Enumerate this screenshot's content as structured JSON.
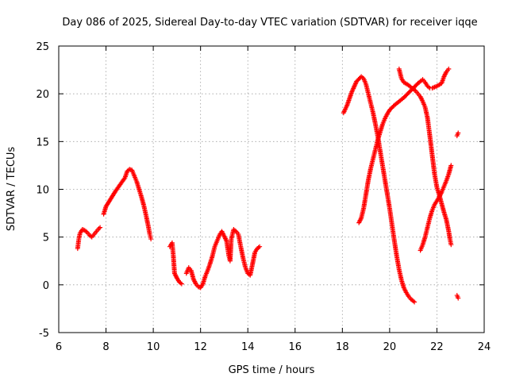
{
  "chart_data": {
    "type": "scatter",
    "title": "Day 086 of 2025, Sidereal Day-to-day VTEC variation (SDTVAR) for receiver iqqe",
    "xlabel": "GPS time / hours",
    "ylabel": "SDTVAR / TECUs",
    "xlim": [
      6,
      24
    ],
    "ylim": [
      -5,
      25
    ],
    "x_ticks": [
      6,
      8,
      10,
      12,
      14,
      16,
      18,
      20,
      22,
      24
    ],
    "y_ticks": [
      -5,
      0,
      5,
      10,
      15,
      20,
      25
    ],
    "x_tick_labels": [
      "6",
      "8",
      "10",
      "12",
      "14",
      "16",
      "18",
      "20",
      "22",
      "24"
    ],
    "y_tick_labels": [
      "-5",
      "0",
      "5",
      "10",
      "15",
      "20",
      "25"
    ],
    "grid": true,
    "marker": "+",
    "color": "#ff0000",
    "series": [
      {
        "name": "arc-1",
        "x": [
          6.8,
          6.85,
          6.9,
          7.0,
          7.1,
          7.2,
          7.3,
          7.4,
          7.5,
          7.6,
          7.7,
          7.75
        ],
        "y": [
          3.8,
          4.8,
          5.4,
          5.8,
          5.7,
          5.5,
          5.2,
          5.0,
          5.3,
          5.6,
          5.9,
          6.0
        ]
      },
      {
        "name": "arc-2",
        "x": [
          7.9,
          8.0,
          8.2,
          8.4,
          8.6,
          8.8,
          8.9,
          9.0,
          9.1,
          9.2,
          9.3,
          9.4,
          9.5,
          9.6,
          9.7,
          9.8,
          9.85,
          9.9
        ],
        "y": [
          7.4,
          8.2,
          9.0,
          9.8,
          10.5,
          11.2,
          11.9,
          12.1,
          12.0,
          11.4,
          10.8,
          10.0,
          9.2,
          8.3,
          7.2,
          6.0,
          5.3,
          4.8
        ]
      },
      {
        "name": "arc-3",
        "x": [
          10.7,
          10.8,
          10.85,
          10.9,
          11.0,
          11.1,
          11.2
        ],
        "y": [
          4.0,
          4.4,
          3.0,
          1.2,
          0.7,
          0.3,
          0.1
        ]
      },
      {
        "name": "arc-4",
        "x": [
          11.4,
          11.5,
          11.6,
          11.7,
          11.8,
          11.9,
          12.0,
          12.1,
          12.2,
          12.3,
          12.4,
          12.5,
          12.6,
          12.7,
          12.8,
          12.9,
          13.0,
          13.1,
          13.2,
          13.25,
          13.3,
          13.4,
          13.5,
          13.6,
          13.7,
          13.8,
          13.9,
          14.0,
          14.1,
          14.2,
          14.3,
          14.4,
          14.5
        ],
        "y": [
          1.2,
          1.8,
          1.5,
          0.6,
          0.1,
          -0.2,
          -0.3,
          0.1,
          0.9,
          1.5,
          2.2,
          3.0,
          4.0,
          4.6,
          5.2,
          5.6,
          5.1,
          4.6,
          3.0,
          2.5,
          4.8,
          5.8,
          5.6,
          5.3,
          4.0,
          2.8,
          1.8,
          1.2,
          1.0,
          2.2,
          3.4,
          3.8,
          4.0
        ]
      },
      {
        "name": "arc-5",
        "x": [
          18.05,
          18.2,
          18.4,
          18.6,
          18.8,
          18.9,
          19.0,
          19.1,
          19.2,
          19.3,
          19.4,
          19.5,
          19.6,
          19.7,
          19.8,
          19.9,
          20.0,
          20.1,
          20.2,
          20.3,
          20.4,
          20.5,
          20.6,
          20.7,
          20.8,
          20.9,
          21.0,
          21.05
        ],
        "y": [
          18.0,
          18.8,
          20.2,
          21.3,
          21.8,
          21.6,
          21.0,
          20.0,
          19.0,
          18.0,
          16.8,
          15.5,
          14.0,
          12.5,
          11.0,
          9.5,
          8.0,
          6.3,
          4.6,
          3.0,
          1.6,
          0.5,
          -0.3,
          -0.8,
          -1.2,
          -1.5,
          -1.7,
          -1.8
        ]
      },
      {
        "name": "arc-6",
        "x": [
          18.7,
          18.8,
          18.9,
          19.0,
          19.1,
          19.2,
          19.3,
          19.4,
          19.5,
          19.6,
          19.7,
          19.8,
          19.9,
          20.0,
          20.2,
          20.4,
          20.6,
          20.8,
          21.0,
          21.2,
          21.4,
          21.5,
          21.6,
          21.7,
          21.8,
          21.9,
          22.0,
          22.2,
          22.3,
          22.4,
          22.5
        ],
        "y": [
          6.5,
          7.0,
          8.0,
          9.5,
          11.0,
          12.2,
          13.2,
          14.2,
          15.2,
          16.0,
          16.8,
          17.4,
          17.9,
          18.3,
          18.8,
          19.2,
          19.6,
          20.1,
          20.6,
          21.1,
          21.5,
          21.2,
          20.8,
          20.6,
          20.6,
          20.7,
          20.8,
          21.1,
          21.8,
          22.3,
          22.6
        ]
      },
      {
        "name": "arc-7",
        "x": [
          20.4,
          20.5,
          20.6,
          20.8,
          21.0,
          21.1,
          21.2,
          21.3,
          21.4,
          21.5,
          21.6,
          21.7,
          21.8,
          21.9,
          22.0,
          22.1,
          22.2,
          22.3,
          22.4,
          22.5,
          22.55,
          22.6
        ],
        "y": [
          22.6,
          21.6,
          21.2,
          20.9,
          20.5,
          20.3,
          20.0,
          19.7,
          19.2,
          18.6,
          17.5,
          15.6,
          13.6,
          11.6,
          10.2,
          9.4,
          8.5,
          7.6,
          6.8,
          5.6,
          4.8,
          4.2
        ]
      },
      {
        "name": "arc-8",
        "x": [
          21.3,
          21.4,
          21.5,
          21.6,
          21.7,
          21.8,
          21.9,
          22.0,
          22.1,
          22.2,
          22.3,
          22.4,
          22.5,
          22.6
        ],
        "y": [
          3.6,
          4.2,
          5.0,
          6.0,
          7.0,
          7.8,
          8.4,
          8.8,
          9.2,
          9.7,
          10.3,
          10.9,
          11.6,
          12.5
        ]
      },
      {
        "name": "arc-9",
        "x": [
          22.85,
          22.9
        ],
        "y": [
          15.6,
          15.9
        ]
      },
      {
        "name": "arc-10",
        "x": [
          22.85,
          22.9
        ],
        "y": [
          -1.1,
          -1.4
        ]
      }
    ]
  }
}
